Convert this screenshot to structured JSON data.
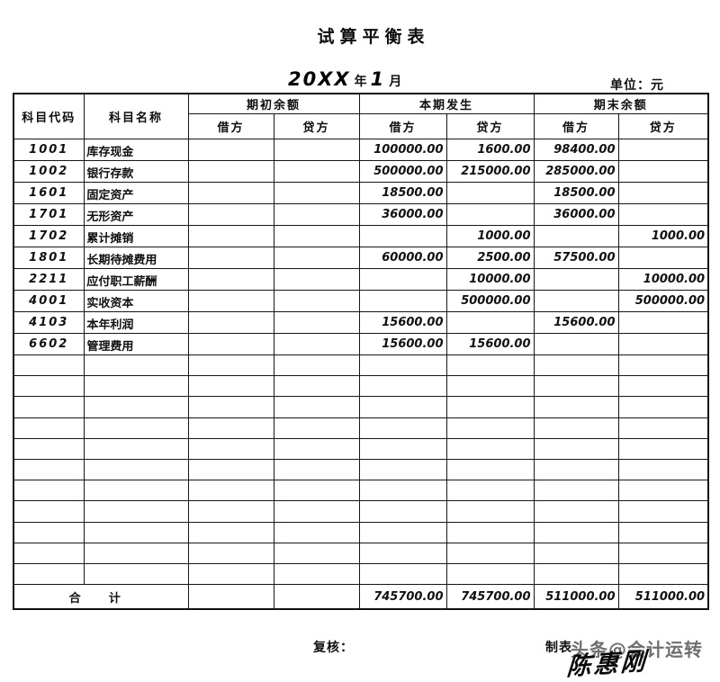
{
  "title": "试算平衡表",
  "date": {
    "year": "20XX",
    "year_label": "年",
    "month": "1",
    "month_label": "月"
  },
  "unit_label": "单位：元",
  "table": {
    "headers": {
      "code": "科目代码",
      "name": "科目名称",
      "opening": "期初余额",
      "current": "本期发生",
      "ending": "期末余额",
      "debit": "借方",
      "credit": "贷方"
    },
    "rows": [
      {
        "code": "1001",
        "name": "库存现金",
        "opening_debit": "",
        "opening_credit": "",
        "current_debit": "100000.00",
        "current_credit": "1600.00",
        "ending_debit": "98400.00",
        "ending_credit": ""
      },
      {
        "code": "1002",
        "name": "银行存款",
        "opening_debit": "",
        "opening_credit": "",
        "current_debit": "500000.00",
        "current_credit": "215000.00",
        "ending_debit": "285000.00",
        "ending_credit": ""
      },
      {
        "code": "1601",
        "name": "固定资产",
        "opening_debit": "",
        "opening_credit": "",
        "current_debit": "18500.00",
        "current_credit": "",
        "ending_debit": "18500.00",
        "ending_credit": ""
      },
      {
        "code": "1701",
        "name": "无形资产",
        "opening_debit": "",
        "opening_credit": "",
        "current_debit": "36000.00",
        "current_credit": "",
        "ending_debit": "36000.00",
        "ending_credit": ""
      },
      {
        "code": "1702",
        "name": "累计摊销",
        "opening_debit": "",
        "opening_credit": "",
        "current_debit": "",
        "current_credit": "1000.00",
        "ending_debit": "",
        "ending_credit": "1000.00"
      },
      {
        "code": "1801",
        "name": "长期待摊费用",
        "opening_debit": "",
        "opening_credit": "",
        "current_debit": "60000.00",
        "current_credit": "2500.00",
        "ending_debit": "57500.00",
        "ending_credit": ""
      },
      {
        "code": "2211",
        "name": "应付职工薪酬",
        "opening_debit": "",
        "opening_credit": "",
        "current_debit": "",
        "current_credit": "10000.00",
        "ending_debit": "",
        "ending_credit": "10000.00"
      },
      {
        "code": "4001",
        "name": "实收资本",
        "opening_debit": "",
        "opening_credit": "",
        "current_debit": "",
        "current_credit": "500000.00",
        "ending_debit": "",
        "ending_credit": "500000.00"
      },
      {
        "code": "4103",
        "name": "本年利润",
        "opening_debit": "",
        "opening_credit": "",
        "current_debit": "15600.00",
        "current_credit": "",
        "ending_debit": "15600.00",
        "ending_credit": ""
      },
      {
        "code": "6602",
        "name": "管理费用",
        "opening_debit": "",
        "opening_credit": "",
        "current_debit": "15600.00",
        "current_credit": "15600.00",
        "ending_debit": "",
        "ending_credit": ""
      }
    ],
    "empty_row_count": 11,
    "total": {
      "label": "合 计",
      "opening_debit": "",
      "opening_credit": "",
      "current_debit": "745700.00",
      "current_credit": "745700.00",
      "ending_debit": "511000.00",
      "ending_credit": "511000.00"
    }
  },
  "footer": {
    "review_label": "复核：",
    "prepare_label": "制表",
    "watermark": "头条@会计运转",
    "signature": "陈惠刚"
  }
}
